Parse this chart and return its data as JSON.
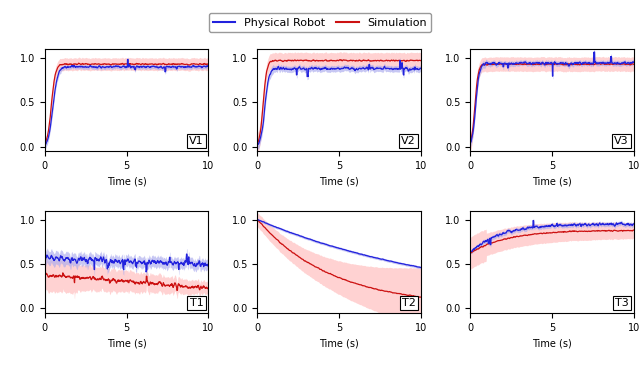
{
  "legend_labels": [
    "Physical Robot",
    "Simulation"
  ],
  "subplot_labels": [
    "V1",
    "V2",
    "V3",
    "T1",
    "T2",
    "T3"
  ],
  "xlabel": "Time (s)",
  "xlim": [
    0,
    10
  ],
  "xticks": [
    0,
    5,
    10
  ],
  "blue_color": "#2222dd",
  "red_color": "#cc1111",
  "blue_fill": "#aaaaee",
  "red_fill": "#ffbbbb",
  "figsize": [
    6.4,
    3.77
  ],
  "dpi": 100,
  "n_points": 600
}
